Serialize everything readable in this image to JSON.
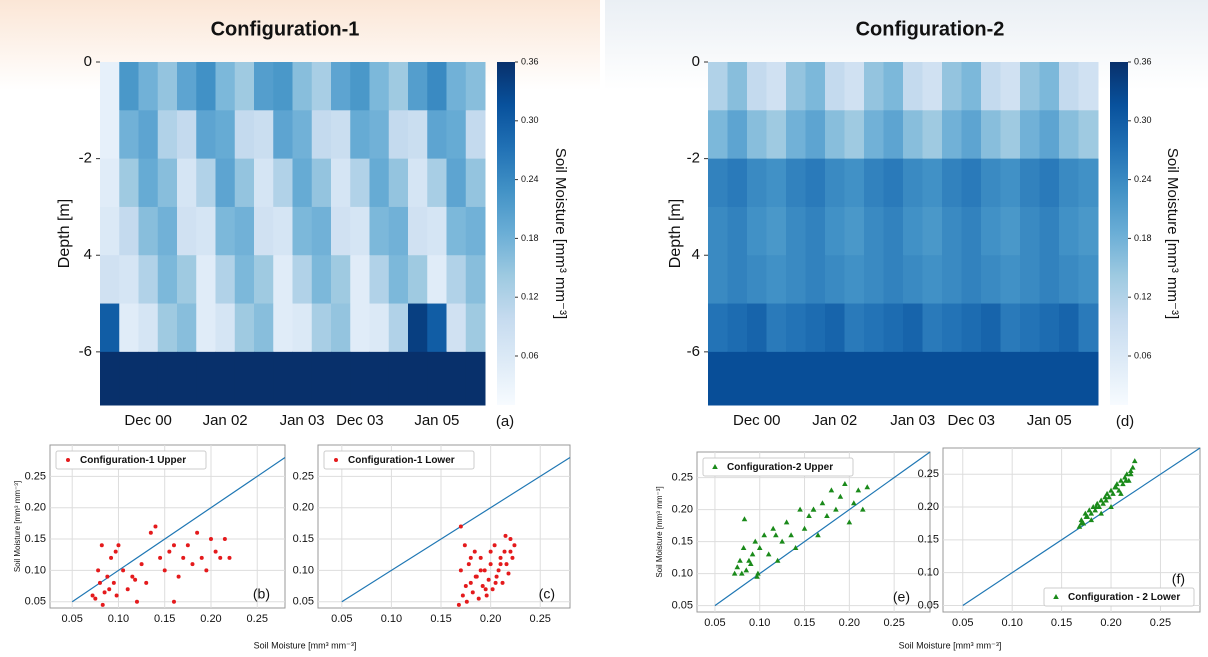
{
  "chart_data": [
    {
      "type": "heatmap",
      "title": "Configuration-1",
      "panel_label": "(a)",
      "ylabel": "Depth [m]",
      "x": [
        null,
        null,
        "Dec 00",
        null,
        null,
        null,
        "Jan 02",
        null,
        null,
        null,
        "Jan 03",
        null,
        null,
        "Dec 03",
        null,
        null,
        null,
        "Jan 05",
        null,
        null
      ],
      "ybins": [
        0,
        -1,
        -2,
        -3,
        -4,
        -5,
        -6,
        -7.1
      ],
      "ylim": [
        0,
        -7.1
      ],
      "yticks": [
        0,
        -2,
        {
          "value": -4,
          "label": "4"
        },
        -6
      ],
      "values": [
        [
          0.04,
          0.22,
          0.18,
          0.15,
          0.2,
          0.23,
          0.17,
          0.14,
          0.21,
          0.22,
          0.16,
          0.13,
          0.2,
          0.22,
          0.17,
          0.14,
          0.21,
          0.24,
          0.18,
          0.16
        ],
        [
          0.04,
          0.18,
          0.2,
          0.12,
          0.1,
          0.2,
          0.19,
          0.1,
          0.09,
          0.2,
          0.18,
          0.1,
          0.09,
          0.19,
          0.18,
          0.1,
          0.09,
          0.2,
          0.19,
          0.1
        ],
        [
          0.05,
          0.14,
          0.19,
          0.16,
          0.07,
          0.12,
          0.2,
          0.15,
          0.07,
          0.12,
          0.19,
          0.15,
          0.07,
          0.12,
          0.19,
          0.15,
          0.07,
          0.13,
          0.2,
          0.15
        ],
        [
          0.06,
          0.1,
          0.16,
          0.18,
          0.08,
          0.07,
          0.17,
          0.18,
          0.08,
          0.07,
          0.17,
          0.18,
          0.08,
          0.07,
          0.17,
          0.18,
          0.08,
          0.07,
          0.17,
          0.18
        ],
        [
          0.08,
          0.07,
          0.12,
          0.17,
          0.14,
          0.05,
          0.12,
          0.17,
          0.14,
          0.05,
          0.12,
          0.17,
          0.14,
          0.05,
          0.12,
          0.17,
          0.14,
          0.05,
          0.12,
          0.16
        ],
        [
          0.3,
          0.05,
          0.07,
          0.14,
          0.16,
          0.05,
          0.07,
          0.14,
          0.16,
          0.05,
          0.06,
          0.13,
          0.15,
          0.05,
          0.06,
          0.12,
          0.34,
          0.3,
          0.08,
          0.14
        ],
        [
          0.36,
          0.36,
          0.36,
          0.36,
          0.36,
          0.36,
          0.36,
          0.36,
          0.36,
          0.36,
          0.36,
          0.36,
          0.36,
          0.36,
          0.36,
          0.36,
          0.36,
          0.36,
          0.36,
          0.36
        ]
      ],
      "clim": [
        0.01,
        0.36
      ],
      "colormap": [
        "#f7fbff",
        "#deebf7",
        "#c6dbef",
        "#9ecae1",
        "#6baed6",
        "#4292c6",
        "#2171b5",
        "#08519c",
        "#08306b"
      ],
      "colorbar_ticks": [
        0.36,
        {
          "value": 0.3,
          "label": "0.30"
        },
        0.24,
        0.18,
        0.12,
        0.06
      ],
      "colorbar_label": "Soil Moisture [mm³ mm⁻³]"
    },
    {
      "type": "scatter",
      "panel_label": "(b)",
      "ylabel": "Soil Moisture [mm³ mm⁻³]",
      "xlabel": "Soil Moisture [mm³ mm⁻³]",
      "legend": "upper left",
      "grid": true,
      "diagonal": [
        0.05,
        0.28
      ],
      "diagonal_color": "#1f77b4",
      "xlim": [
        0.026,
        0.28
      ],
      "ylim": [
        0.04,
        0.3
      ],
      "xticks": [
        0.05,
        {
          "value": 0.1,
          "label": "0.10"
        },
        0.15,
        {
          "value": 0.2,
          "label": "0.20"
        },
        0.25
      ],
      "yticks": [
        0.05,
        {
          "value": 0.1,
          "label": "0.10"
        },
        0.15,
        {
          "value": 0.2,
          "label": "0.20"
        },
        0.25
      ],
      "series": [
        {
          "name": "Configuration-1 Upper",
          "color": "#e41a1c",
          "marker": "circle",
          "x": [
            0.072,
            0.075,
            0.078,
            0.08,
            0.082,
            0.085,
            0.088,
            0.09,
            0.092,
            0.095,
            0.098,
            0.1,
            0.105,
            0.11,
            0.115,
            0.12,
            0.125,
            0.13,
            0.135,
            0.14,
            0.145,
            0.15,
            0.155,
            0.16,
            0.165,
            0.17,
            0.175,
            0.18,
            0.185,
            0.19,
            0.195,
            0.2,
            0.205,
            0.21,
            0.215,
            0.22,
            0.083,
            0.097,
            0.118,
            0.16
          ],
          "y": [
            0.06,
            0.055,
            0.1,
            0.08,
            0.14,
            0.065,
            0.09,
            0.07,
            0.12,
            0.08,
            0.06,
            0.14,
            0.1,
            0.07,
            0.09,
            0.05,
            0.11,
            0.08,
            0.16,
            0.17,
            0.12,
            0.1,
            0.13,
            0.05,
            0.09,
            0.12,
            0.14,
            0.11,
            0.16,
            0.12,
            0.1,
            0.15,
            0.13,
            0.12,
            0.15,
            0.12,
            0.045,
            0.13,
            0.085,
            0.14
          ]
        }
      ]
    },
    {
      "type": "scatter",
      "panel_label": "(c)",
      "legend": "upper left",
      "grid": true,
      "diagonal": [
        0.05,
        0.28
      ],
      "diagonal_color": "#1f77b4",
      "xlim": [
        0.026,
        0.28
      ],
      "ylim": [
        0.04,
        0.3
      ],
      "xticks": [
        0.05,
        {
          "value": 0.1,
          "label": "0.10"
        },
        0.15,
        {
          "value": 0.2,
          "label": "0.20"
        },
        0.25
      ],
      "yticks": [
        0.05,
        {
          "value": 0.1,
          "label": "0.10"
        },
        0.15,
        {
          "value": 0.2,
          "label": "0.20"
        },
        0.25
      ],
      "series": [
        {
          "name": "Configuration-1 Lower",
          "color": "#e41a1c",
          "marker": "circle",
          "x": [
            0.168,
            0.17,
            0.172,
            0.174,
            0.176,
            0.178,
            0.18,
            0.182,
            0.184,
            0.186,
            0.188,
            0.19,
            0.192,
            0.194,
            0.196,
            0.198,
            0.2,
            0.202,
            0.204,
            0.206,
            0.208,
            0.21,
            0.212,
            0.214,
            0.216,
            0.218,
            0.22,
            0.222,
            0.224,
            0.17,
            0.175,
            0.18,
            0.185,
            0.19,
            0.195,
            0.2,
            0.205,
            0.21,
            0.215,
            0.22
          ],
          "y": [
            0.045,
            0.17,
            0.06,
            0.14,
            0.05,
            0.11,
            0.08,
            0.065,
            0.13,
            0.09,
            0.055,
            0.12,
            0.075,
            0.1,
            0.06,
            0.085,
            0.11,
            0.07,
            0.14,
            0.09,
            0.1,
            0.12,
            0.08,
            0.13,
            0.11,
            0.095,
            0.15,
            0.12,
            0.14,
            0.1,
            0.075,
            0.12,
            0.09,
            0.1,
            0.07,
            0.13,
            0.08,
            0.11,
            0.155,
            0.13
          ]
        }
      ]
    },
    {
      "type": "heatmap",
      "title": "Configuration-2",
      "panel_label": "(d)",
      "ylabel": "Depth [m]",
      "x": [
        null,
        null,
        "Dec 00",
        null,
        null,
        null,
        "Jan 02",
        null,
        null,
        null,
        "Jan 03",
        null,
        null,
        "Dec 03",
        null,
        null,
        null,
        "Jan 05",
        null,
        null
      ],
      "ybins": [
        0,
        -1,
        -2,
        -3,
        -4,
        -5,
        -6,
        -7.1
      ],
      "ylim": [
        0,
        -7.1
      ],
      "yticks": [
        0,
        -2,
        {
          "value": -4,
          "label": "4"
        },
        -6
      ],
      "values": [
        [
          0.12,
          0.16,
          0.1,
          0.08,
          0.15,
          0.17,
          0.1,
          0.08,
          0.15,
          0.17,
          0.1,
          0.08,
          0.15,
          0.17,
          0.1,
          0.08,
          0.15,
          0.17,
          0.1,
          0.08
        ],
        [
          0.17,
          0.2,
          0.16,
          0.14,
          0.18,
          0.2,
          0.16,
          0.14,
          0.18,
          0.2,
          0.16,
          0.14,
          0.18,
          0.2,
          0.16,
          0.14,
          0.18,
          0.2,
          0.16,
          0.14
        ],
        [
          0.25,
          0.26,
          0.24,
          0.23,
          0.25,
          0.26,
          0.24,
          0.23,
          0.25,
          0.26,
          0.24,
          0.23,
          0.25,
          0.26,
          0.24,
          0.23,
          0.25,
          0.26,
          0.24,
          0.23
        ],
        [
          0.24,
          0.25,
          0.23,
          0.22,
          0.24,
          0.25,
          0.23,
          0.22,
          0.24,
          0.25,
          0.23,
          0.22,
          0.24,
          0.25,
          0.23,
          0.22,
          0.24,
          0.25,
          0.23,
          0.22
        ],
        [
          0.24,
          0.25,
          0.24,
          0.23,
          0.24,
          0.25,
          0.24,
          0.23,
          0.24,
          0.25,
          0.24,
          0.23,
          0.24,
          0.25,
          0.24,
          0.23,
          0.24,
          0.25,
          0.24,
          0.23
        ],
        [
          0.27,
          0.28,
          0.29,
          0.26,
          0.27,
          0.28,
          0.29,
          0.26,
          0.27,
          0.28,
          0.29,
          0.26,
          0.27,
          0.28,
          0.29,
          0.26,
          0.27,
          0.28,
          0.29,
          0.26
        ],
        [
          0.32,
          0.32,
          0.32,
          0.32,
          0.32,
          0.32,
          0.32,
          0.32,
          0.32,
          0.32,
          0.32,
          0.32,
          0.32,
          0.32,
          0.32,
          0.32,
          0.32,
          0.32,
          0.32,
          0.32
        ]
      ],
      "clim": [
        0.01,
        0.36
      ],
      "colormap": [
        "#f7fbff",
        "#deebf7",
        "#c6dbef",
        "#9ecae1",
        "#6baed6",
        "#4292c6",
        "#2171b5",
        "#08519c",
        "#08306b"
      ],
      "colorbar_ticks": [
        0.36,
        {
          "value": 0.3,
          "label": "0.30"
        },
        0.24,
        0.18,
        0.12,
        0.06
      ],
      "colorbar_label": "Soil Moisture [mm³ mm⁻³]"
    },
    {
      "type": "scatter",
      "panel_label": "(e)",
      "ylabel": "Soil Moisture [mm³ mm⁻³]",
      "xlabel": "Soil Moisture [mm³ mm⁻³]",
      "legend": "upper left",
      "grid": true,
      "diagonal": [
        0.05,
        0.29
      ],
      "diagonal_color": "#1f77b4",
      "xlim": [
        0.03,
        0.29
      ],
      "ylim": [
        0.04,
        0.29
      ],
      "xticks": [
        0.05,
        {
          "value": 0.1,
          "label": "0.10"
        },
        0.15,
        {
          "value": 0.2,
          "label": "0.20"
        },
        0.25
      ],
      "yticks": [
        0.05,
        {
          "value": 0.1,
          "label": "0.10"
        },
        0.15,
        {
          "value": 0.2,
          "label": "0.20"
        },
        0.25
      ],
      "series": [
        {
          "name": "Configuration-2  Upper",
          "color": "#1a8a1a",
          "marker": "triangle",
          "x": [
            0.072,
            0.075,
            0.078,
            0.08,
            0.082,
            0.085,
            0.088,
            0.09,
            0.092,
            0.095,
            0.098,
            0.1,
            0.105,
            0.11,
            0.115,
            0.12,
            0.125,
            0.13,
            0.135,
            0.14,
            0.145,
            0.15,
            0.155,
            0.16,
            0.165,
            0.17,
            0.175,
            0.18,
            0.185,
            0.19,
            0.195,
            0.2,
            0.205,
            0.21,
            0.215,
            0.22,
            0.083,
            0.097,
            0.118,
            0.16
          ],
          "y": [
            0.1,
            0.11,
            0.12,
            0.1,
            0.14,
            0.105,
            0.12,
            0.115,
            0.13,
            0.15,
            0.1,
            0.14,
            0.16,
            0.13,
            0.17,
            0.12,
            0.15,
            0.18,
            0.16,
            0.14,
            0.2,
            0.17,
            0.19,
            0.2,
            0.16,
            0.21,
            0.19,
            0.23,
            0.2,
            0.22,
            0.24,
            0.18,
            0.21,
            0.23,
            0.2,
            0.235,
            0.185,
            0.095,
            0.16,
            0.2
          ]
        }
      ]
    },
    {
      "type": "scatter",
      "panel_label": "(f)",
      "legend": "lower right",
      "grid": true,
      "diagonal": [
        0.05,
        0.29
      ],
      "diagonal_color": "#1f77b4",
      "xlim": [
        0.03,
        0.29
      ],
      "ylim": [
        0.04,
        0.29
      ],
      "xticks": [
        0.05,
        {
          "value": 0.1,
          "label": "0.10"
        },
        0.15,
        {
          "value": 0.2,
          "label": "0.20"
        },
        0.25
      ],
      "yticks": [
        0.05,
        {
          "value": 0.1,
          "label": "0.10"
        },
        0.15,
        {
          "value": 0.2,
          "label": "0.20"
        },
        0.25
      ],
      "series": [
        {
          "name": "Configuration - 2 Lower",
          "color": "#1a8a1a",
          "marker": "triangle",
          "x": [
            0.168,
            0.17,
            0.172,
            0.174,
            0.176,
            0.178,
            0.18,
            0.182,
            0.184,
            0.186,
            0.188,
            0.19,
            0.192,
            0.194,
            0.196,
            0.198,
            0.2,
            0.202,
            0.204,
            0.206,
            0.208,
            0.21,
            0.212,
            0.214,
            0.216,
            0.218,
            0.22,
            0.222,
            0.224,
            0.17,
            0.175,
            0.18,
            0.185,
            0.19,
            0.195,
            0.2,
            0.205,
            0.21,
            0.215,
            0.22
          ],
          "y": [
            0.17,
            0.18,
            0.175,
            0.19,
            0.185,
            0.195,
            0.19,
            0.2,
            0.195,
            0.205,
            0.2,
            0.21,
            0.205,
            0.215,
            0.22,
            0.215,
            0.225,
            0.22,
            0.23,
            0.235,
            0.225,
            0.24,
            0.235,
            0.245,
            0.25,
            0.24,
            0.255,
            0.26,
            0.27,
            0.175,
            0.185,
            0.18,
            0.2,
            0.19,
            0.21,
            0.2,
            0.23,
            0.22,
            0.24,
            0.25
          ]
        }
      ]
    }
  ]
}
